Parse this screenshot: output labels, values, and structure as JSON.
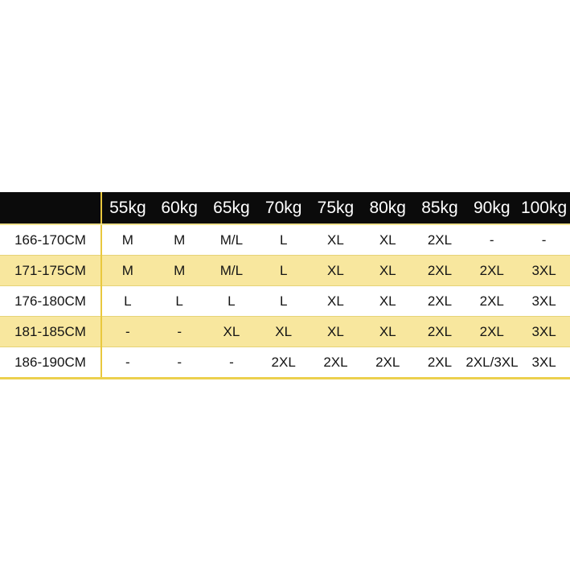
{
  "colors": {
    "page_bg": "#ffffff",
    "header_bg": "#0b0b0b",
    "header_text": "#ffffff",
    "row_bg": "#ffffff",
    "row_alt_bg": "#f8e79e",
    "grid_line_gold": "#e9c83e",
    "row_divider": "#e6d376",
    "bottom_border": "#ecd04e",
    "cell_text": "#141414"
  },
  "chart_data": {
    "type": "table",
    "title": "",
    "columns": [
      "",
      "55kg",
      "60kg",
      "65kg",
      "70kg",
      "75kg",
      "80kg",
      "85kg",
      "90kg",
      "100kg"
    ],
    "rows": [
      {
        "label": "166-170CM",
        "values": [
          "M",
          "M",
          "M/L",
          "L",
          "XL",
          "XL",
          "2XL",
          "-",
          "-"
        ]
      },
      {
        "label": "171-175CM",
        "values": [
          "M",
          "M",
          "M/L",
          "L",
          "XL",
          "XL",
          "2XL",
          "2XL",
          "3XL"
        ]
      },
      {
        "label": "176-180CM",
        "values": [
          "L",
          "L",
          "L",
          "L",
          "XL",
          "XL",
          "2XL",
          "2XL",
          "3XL"
        ]
      },
      {
        "label": "181-185CM",
        "values": [
          "-",
          "-",
          "XL",
          "XL",
          "XL",
          "XL",
          "2XL",
          "2XL",
          "3XL"
        ]
      },
      {
        "label": "186-190CM",
        "values": [
          "-",
          "-",
          "-",
          "2XL",
          "2XL",
          "2XL",
          "2XL",
          "2XL/3XL",
          "3XL"
        ]
      }
    ]
  }
}
